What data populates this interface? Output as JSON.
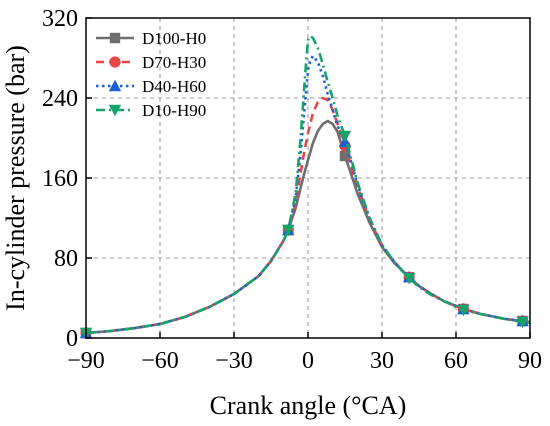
{
  "chart_data": {
    "type": "line",
    "xlabel": "Crank angle (°CA)",
    "ylabel": "In-cylinder pressure (bar)",
    "xlim": [
      -90,
      90
    ],
    "ylim": [
      0,
      320
    ],
    "xticks": [
      -90,
      -60,
      -30,
      0,
      30,
      60,
      90
    ],
    "yticks": [
      0,
      80,
      160,
      240,
      320
    ],
    "xtick_labels": [
      "−90",
      "−60",
      "−30",
      "0",
      "30",
      "60",
      "90"
    ],
    "ytick_labels": [
      "0",
      "80",
      "160",
      "240",
      "320"
    ],
    "grid": true,
    "legend_position": "top-left",
    "series": [
      {
        "name": "D100-H0",
        "color": "#6e6e6e",
        "line_style": "solid",
        "marker": "square",
        "marker_x": [
          -90,
          -8,
          15,
          41,
          63,
          87
        ],
        "points": [
          [
            -90,
            5
          ],
          [
            -80,
            7
          ],
          [
            -70,
            10
          ],
          [
            -60,
            14
          ],
          [
            -50,
            21
          ],
          [
            -40,
            31
          ],
          [
            -30,
            44
          ],
          [
            -20,
            62
          ],
          [
            -15,
            77
          ],
          [
            -10,
            97
          ],
          [
            -8,
            108
          ],
          [
            -5,
            130
          ],
          [
            -2,
            160
          ],
          [
            0,
            178
          ],
          [
            2,
            195
          ],
          [
            4,
            207
          ],
          [
            6,
            214
          ],
          [
            8,
            217
          ],
          [
            10,
            214
          ],
          [
            12,
            206
          ],
          [
            15,
            182
          ],
          [
            18,
            160
          ],
          [
            20,
            145
          ],
          [
            25,
            115
          ],
          [
            30,
            91
          ],
          [
            35,
            75
          ],
          [
            40,
            63
          ],
          [
            45,
            52
          ],
          [
            50,
            44
          ],
          [
            55,
            37
          ],
          [
            60,
            32
          ],
          [
            63,
            29
          ],
          [
            70,
            24
          ],
          [
            80,
            19
          ],
          [
            87,
            17
          ],
          [
            90,
            16
          ]
        ]
      },
      {
        "name": "D70-H30",
        "color": "#e84545",
        "line_style": "dashed",
        "marker": "circle",
        "marker_x": [
          -90,
          -8,
          15,
          41,
          63,
          87
        ],
        "points": [
          [
            -90,
            5
          ],
          [
            -80,
            7
          ],
          [
            -70,
            10
          ],
          [
            -60,
            14
          ],
          [
            -50,
            21
          ],
          [
            -40,
            31
          ],
          [
            -30,
            44
          ],
          [
            -20,
            62
          ],
          [
            -15,
            77
          ],
          [
            -10,
            97
          ],
          [
            -8,
            108
          ],
          [
            -5,
            135
          ],
          [
            -2,
            180
          ],
          [
            0,
            205
          ],
          [
            2,
            225
          ],
          [
            4,
            236
          ],
          [
            6,
            240
          ],
          [
            8,
            238
          ],
          [
            10,
            228
          ],
          [
            12,
            214
          ],
          [
            15,
            192
          ],
          [
            18,
            168
          ],
          [
            20,
            152
          ],
          [
            25,
            118
          ],
          [
            30,
            92
          ],
          [
            35,
            76
          ],
          [
            40,
            63
          ],
          [
            45,
            52
          ],
          [
            50,
            44
          ],
          [
            55,
            37
          ],
          [
            60,
            32
          ],
          [
            63,
            29
          ],
          [
            70,
            24
          ],
          [
            80,
            19
          ],
          [
            87,
            17
          ],
          [
            90,
            16
          ]
        ]
      },
      {
        "name": "D40-H60",
        "color": "#1f5fd6",
        "line_style": "dotted",
        "marker": "triangle-up",
        "marker_x": [
          -90,
          -8,
          15,
          41,
          63,
          87
        ],
        "points": [
          [
            -90,
            5
          ],
          [
            -80,
            7
          ],
          [
            -70,
            10
          ],
          [
            -60,
            14
          ],
          [
            -50,
            21
          ],
          [
            -40,
            31
          ],
          [
            -30,
            44
          ],
          [
            -20,
            62
          ],
          [
            -15,
            77
          ],
          [
            -10,
            97
          ],
          [
            -8,
            108
          ],
          [
            -5,
            140
          ],
          [
            -3,
            185
          ],
          [
            -1,
            240
          ],
          [
            0,
            268
          ],
          [
            1,
            278
          ],
          [
            2,
            282
          ],
          [
            4,
            276
          ],
          [
            6,
            262
          ],
          [
            8,
            244
          ],
          [
            10,
            228
          ],
          [
            12,
            212
          ],
          [
            15,
            196
          ],
          [
            18,
            172
          ],
          [
            20,
            154
          ],
          [
            25,
            119
          ],
          [
            30,
            93
          ],
          [
            35,
            76
          ],
          [
            40,
            63
          ],
          [
            45,
            52
          ],
          [
            50,
            44
          ],
          [
            55,
            37
          ],
          [
            60,
            32
          ],
          [
            63,
            29
          ],
          [
            70,
            24
          ],
          [
            80,
            19
          ],
          [
            87,
            17
          ],
          [
            90,
            16
          ]
        ]
      },
      {
        "name": "D10-H90",
        "color": "#16a36a",
        "line_style": "dash-dot",
        "marker": "triangle-down",
        "marker_x": [
          -90,
          -8,
          15,
          41,
          63,
          87
        ],
        "points": [
          [
            -90,
            5
          ],
          [
            -80,
            7
          ],
          [
            -70,
            10
          ],
          [
            -60,
            14
          ],
          [
            -50,
            21
          ],
          [
            -40,
            31
          ],
          [
            -30,
            44
          ],
          [
            -20,
            62
          ],
          [
            -15,
            77
          ],
          [
            -10,
            97
          ],
          [
            -8,
            108
          ],
          [
            -5,
            145
          ],
          [
            -3,
            200
          ],
          [
            -1,
            268
          ],
          [
            0,
            298
          ],
          [
            1,
            302
          ],
          [
            2,
            300
          ],
          [
            4,
            290
          ],
          [
            6,
            274
          ],
          [
            8,
            256
          ],
          [
            10,
            240
          ],
          [
            12,
            222
          ],
          [
            15,
            202
          ],
          [
            18,
            175
          ],
          [
            20,
            156
          ],
          [
            25,
            120
          ],
          [
            30,
            93
          ],
          [
            35,
            76
          ],
          [
            40,
            62
          ],
          [
            45,
            51
          ],
          [
            50,
            43
          ],
          [
            55,
            37
          ],
          [
            60,
            31
          ],
          [
            63,
            28
          ],
          [
            70,
            24
          ],
          [
            80,
            19
          ],
          [
            87,
            16
          ],
          [
            90,
            15
          ]
        ]
      }
    ]
  }
}
